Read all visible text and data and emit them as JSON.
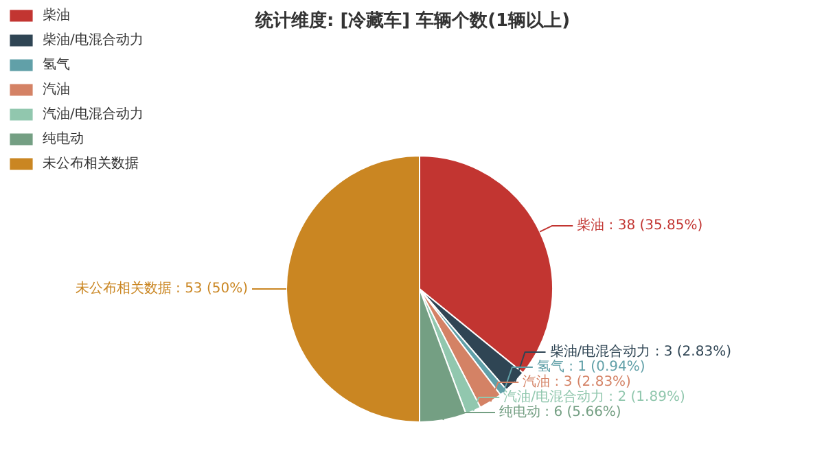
{
  "chart_data": {
    "type": "pie",
    "title": "统计维度: [冷藏车] 车辆个数(1辆以上)",
    "categories": [
      "柴油",
      "柴油/电混合动力",
      "氢气",
      "汽油",
      "汽油/电混合动力",
      "纯电动",
      "未公布相关数据"
    ],
    "values": [
      38,
      3,
      1,
      3,
      2,
      6,
      53
    ],
    "colors": [
      "#c23531",
      "#2f4554",
      "#61a0a8",
      "#d48265",
      "#91c7ae",
      "#749f83",
      "#ca8622"
    ],
    "value_labels": [
      "柴油 : 38 (35.85%)",
      "柴油/电混合动力 : 3 (2.83%)",
      "氢气 : 1 (0.94%)",
      "汽油 : 3 (2.83%)",
      "汽油/电混合动力 : 2 (1.89%)",
      "纯电动 : 6 (5.66%)",
      "未公布相关数据 : 53 (50%)"
    ],
    "legend": "top left"
  }
}
